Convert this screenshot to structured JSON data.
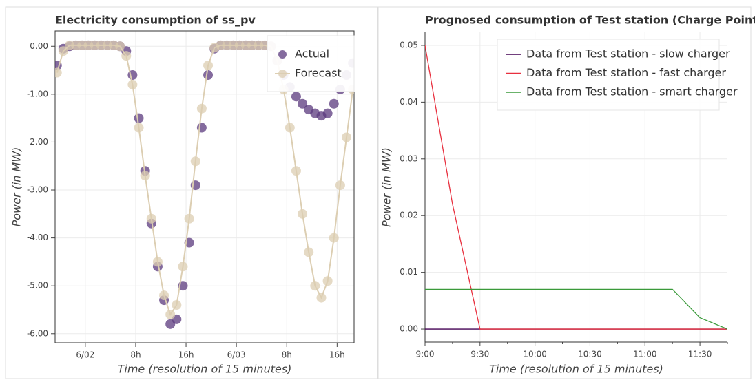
{
  "chart_data": [
    {
      "type": "scatter",
      "title": "Electricity consumption of ss_pv",
      "x_label": "Time (resolution of 15 minutes)",
      "y_label": "Power (in MW)",
      "x": [
        -4.5,
        -3.5,
        -2.5,
        -1.5,
        -0.5,
        0.5,
        1.5,
        2.5,
        3.5,
        4.5,
        5.5,
        6.5,
        7.5,
        8.5,
        9.5,
        10.5,
        11.5,
        12.5,
        13.5,
        14.5,
        15.5,
        16.5,
        17.5,
        18.5,
        19.5,
        20.5,
        21.5,
        22.5,
        23.5,
        24.5,
        25.5,
        26.5,
        27.5,
        28.5,
        29.5,
        30.5,
        31.5,
        32.5,
        33.5,
        34.5,
        35.5,
        36.5,
        37.5,
        38.5,
        39.5,
        40.5,
        41.5,
        42.5
      ],
      "series": [
        {
          "name": "Actual",
          "color": "#5b3a7d",
          "values": [
            -0.4,
            -0.05,
            0,
            0.02,
            0.02,
            0.02,
            0.02,
            0.02,
            0.02,
            0.02,
            0,
            -0.1,
            -0.6,
            -1.5,
            -2.6,
            -3.7,
            -4.6,
            -5.3,
            -5.8,
            -5.7,
            -5.0,
            -4.1,
            -2.9,
            -1.7,
            -0.6,
            -0.05,
            0.02,
            0.02,
            0.02,
            0.02,
            0.02,
            0.02,
            0.02,
            0.02,
            0,
            -0.3,
            -0.6,
            -0.85,
            -1.05,
            -1.2,
            -1.32,
            -1.4,
            -1.45,
            -1.4,
            -1.2,
            -0.9,
            -0.6,
            -0.35
          ]
        },
        {
          "name": "Forecast",
          "color": "#dcceb2",
          "line": true,
          "values": [
            -0.55,
            -0.1,
            0.02,
            0.02,
            0.02,
            0.02,
            0.02,
            0.02,
            0.02,
            0.02,
            0,
            -0.2,
            -0.8,
            -1.7,
            -2.7,
            -3.6,
            -4.5,
            -5.2,
            -5.6,
            -5.4,
            -4.6,
            -3.6,
            -2.4,
            -1.3,
            -0.4,
            -0.03,
            0.02,
            0.02,
            0.02,
            0.02,
            0.02,
            0.02,
            0.02,
            0.02,
            0,
            -0.3,
            -0.9,
            -1.7,
            -2.6,
            -3.5,
            -4.3,
            -5.0,
            -5.25,
            -4.9,
            -4.0,
            -2.9,
            -1.9,
            -0.9
          ]
        }
      ],
      "xlim": [
        -4.8,
        42.7
      ],
      "xticks": [
        {
          "value": 0,
          "label": "6/02"
        },
        {
          "value": 8,
          "label": "8h"
        },
        {
          "value": 16,
          "label": "16h"
        },
        {
          "value": 24,
          "label": "6/03"
        },
        {
          "value": 32,
          "label": "8h"
        },
        {
          "value": 40,
          "label": "16h"
        }
      ],
      "ylim": [
        -6.19,
        0.32
      ],
      "yticks": [
        {
          "value": 0,
          "label": "0.00"
        },
        {
          "value": -1,
          "label": "-1.00"
        },
        {
          "value": -2,
          "label": "-2.00"
        },
        {
          "value": -3,
          "label": "-3.00"
        },
        {
          "value": -4,
          "label": "-4.00"
        },
        {
          "value": -5,
          "label": "-5.00"
        },
        {
          "value": -6,
          "label": "-6.00"
        }
      ],
      "grid": true,
      "legend": "top-right"
    },
    {
      "type": "line",
      "title": "Prognosed consumption of Test station (Charge Point)",
      "x_label": "Time (resolution of 15 minutes)",
      "y_label": "Power (in MW)",
      "categories": [
        "9:00",
        null,
        "9:30",
        null,
        "10:00",
        null,
        "10:30",
        null,
        "11:00",
        null,
        "11:30",
        null
      ],
      "series": [
        {
          "name": "Data from Test station - slow charger",
          "color": "#440154",
          "values": [
            0,
            0,
            0,
            0,
            0,
            0,
            0,
            0,
            0,
            0,
            0,
            0
          ]
        },
        {
          "name": "Data from Test station - fast charger",
          "color": "#e8303f",
          "values": [
            0.05,
            0.022,
            0,
            0,
            0,
            0,
            0,
            0,
            0,
            0,
            0,
            0
          ]
        },
        {
          "name": "Data from Test station - smart charger",
          "color": "#3a9a3a",
          "values": [
            0.007,
            0.007,
            0.007,
            0.007,
            0.007,
            0.007,
            0.007,
            0.007,
            0.007,
            0.007,
            0.002,
            0
          ]
        }
      ],
      "ylim": [
        -0.0023,
        0.0523
      ],
      "yticks": [
        {
          "value": 0,
          "label": "0.00"
        },
        {
          "value": 0.01,
          "label": "0.01"
        },
        {
          "value": 0.02,
          "label": "0.02"
        },
        {
          "value": 0.03,
          "label": "0.03"
        },
        {
          "value": 0.04,
          "label": "0.04"
        },
        {
          "value": 0.05,
          "label": "0.05"
        }
      ],
      "grid": true,
      "legend": "top-right"
    }
  ]
}
